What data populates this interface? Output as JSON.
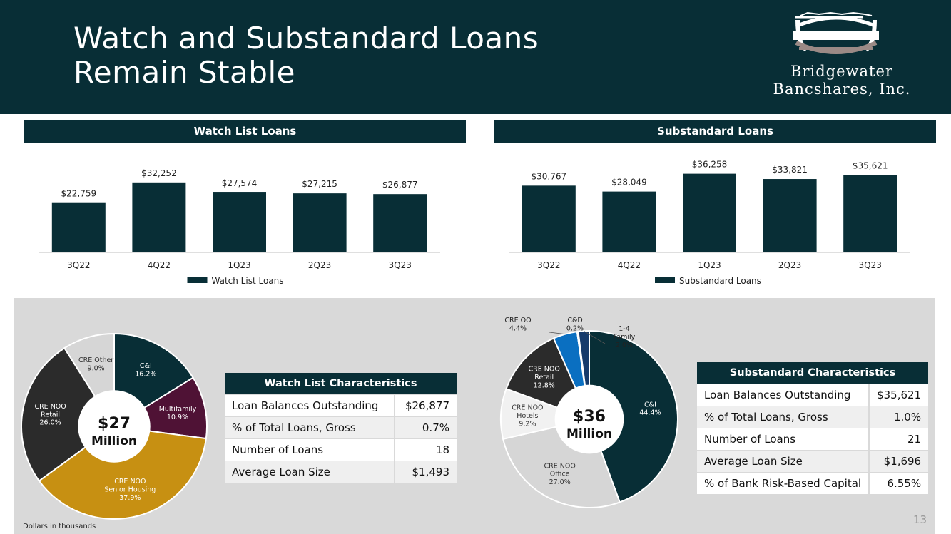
{
  "header": {
    "title_line1": "Watch and Substandard Loans",
    "title_line2": "Remain Stable",
    "logo_line1": "Bridgewater",
    "logo_line2": "Bancshares, Inc."
  },
  "colors": {
    "navy": "#082e36",
    "gold": "#c79012",
    "maroon": "#4f1235",
    "dark_gray": "#2b2b2b",
    "light_gray": "#d6d6d6",
    "lighter_gray": "#f1f1f1",
    "blue": "#0a6fc1",
    "navy_blue": "#163a6b"
  },
  "chart_data": [
    {
      "type": "bar",
      "title": "Watch List Loans",
      "categories": [
        "3Q22",
        "4Q22",
        "1Q23",
        "2Q23",
        "3Q23"
      ],
      "series": [
        {
          "name": "Watch List Loans",
          "values": [
            22759,
            32252,
            27574,
            27215,
            26877
          ]
        }
      ],
      "data_labels": [
        "$22,759",
        "$32,252",
        "$27,574",
        "$27,215",
        "$26,877"
      ],
      "ylim": [
        0,
        45000
      ],
      "legend": "bottom",
      "grid": false
    },
    {
      "type": "bar",
      "title": "Substandard Loans",
      "categories": [
        "3Q22",
        "4Q22",
        "1Q23",
        "2Q23",
        "3Q23"
      ],
      "series": [
        {
          "name": "Substandard Loans",
          "values": [
            30767,
            28049,
            36258,
            33821,
            35621
          ]
        }
      ],
      "data_labels": [
        "$30,767",
        "$28,049",
        "$36,258",
        "$33,821",
        "$35,621"
      ],
      "ylim": [
        0,
        45000
      ],
      "legend": "bottom",
      "grid": false
    },
    {
      "type": "pie",
      "center_label_1": "$27",
      "center_label_2": "Million",
      "slices": [
        {
          "label": "C&I",
          "value": 16.2,
          "text": "16.2%",
          "color": "#082e36"
        },
        {
          "label": "Multifamily",
          "value": 10.9,
          "text": "10.9%",
          "color": "#4f1235"
        },
        {
          "label": "CRE NOO Senior Housing",
          "value": 37.9,
          "text": "37.9%",
          "color": "#c79012"
        },
        {
          "label": "CRE NOO Retail",
          "value": 26.0,
          "text": "26.0%",
          "color": "#2b2b2b"
        },
        {
          "label": "CRE Other",
          "value": 9.0,
          "text": "9.0%",
          "color": "#d6d6d6"
        }
      ]
    },
    {
      "type": "pie",
      "center_label_1": "$36",
      "center_label_2": "Million",
      "slices": [
        {
          "label": "C&I",
          "value": 44.4,
          "text": "44.4%",
          "color": "#082e36"
        },
        {
          "label": "CRE NOO Office",
          "value": 27.0,
          "text": "27.0%",
          "color": "#d6d6d6"
        },
        {
          "label": "CRE NOO Hotels",
          "value": 9.2,
          "text": "9.2%",
          "color": "#f1f1f1"
        },
        {
          "label": "CRE NOO Retail",
          "value": 12.8,
          "text": "12.8%",
          "color": "#2b2b2b"
        },
        {
          "label": "CRE OO",
          "value": 4.4,
          "text": "4.4%",
          "color": "#0a6fc1"
        },
        {
          "label": "C&D",
          "value": 0.2,
          "text": "0.2%",
          "color": "#ffffff"
        },
        {
          "label": "1-4 Family",
          "value": 2.0,
          "text": "2.0%",
          "color": "#163a6b"
        }
      ]
    }
  ],
  "pie_labels": {
    "watch": [
      {
        "line1": "C&I",
        "line2": "",
        "pct": "16.2%"
      },
      {
        "line1": "Multifamily",
        "line2": "",
        "pct": "10.9%"
      },
      {
        "line1": "CRE NOO",
        "line2": "Senior Housing",
        "pct": "37.9%"
      },
      {
        "line1": "CRE NOO",
        "line2": "Retail",
        "pct": "26.0%"
      },
      {
        "line1": "CRE Other",
        "line2": "",
        "pct": "9.0%"
      }
    ],
    "sub": [
      {
        "line1": "C&I",
        "line2": "",
        "pct": "44.4%"
      },
      {
        "line1": "CRE NOO",
        "line2": "Office",
        "pct": "27.0%"
      },
      {
        "line1": "CRE NOO",
        "line2": "Hotels",
        "pct": "9.2%"
      },
      {
        "line1": "CRE NOO",
        "line2": "Retail",
        "pct": "12.8%"
      },
      {
        "line1": "CRE OO",
        "line2": "",
        "pct": "4.4%"
      },
      {
        "line1": "C&D",
        "line2": "",
        "pct": "0.2%"
      },
      {
        "line1": "1-4",
        "line2": "Family",
        "pct": "2.0%"
      }
    ]
  },
  "watch_characteristics": {
    "title": "Watch List Characteristics",
    "rows": [
      {
        "label": "Loan Balances Outstanding",
        "value": "$26,877"
      },
      {
        "label": "% of Total Loans, Gross",
        "value": "0.7%"
      },
      {
        "label": "Number of Loans",
        "value": "18"
      },
      {
        "label": "Average Loan Size",
        "value": "$1,493"
      }
    ]
  },
  "substandard_characteristics": {
    "title": "Substandard Characteristics",
    "rows": [
      {
        "label": "Loan Balances Outstanding",
        "value": "$35,621"
      },
      {
        "label": "% of Total Loans, Gross",
        "value": "1.0%"
      },
      {
        "label": "Number of Loans",
        "value": "21"
      },
      {
        "label": "Average Loan Size",
        "value": "$1,696"
      },
      {
        "label": "% of Bank Risk-Based Capital",
        "value": "6.55%"
      }
    ]
  },
  "footer": {
    "note": "Dollars in thousands",
    "page_number": "13"
  }
}
